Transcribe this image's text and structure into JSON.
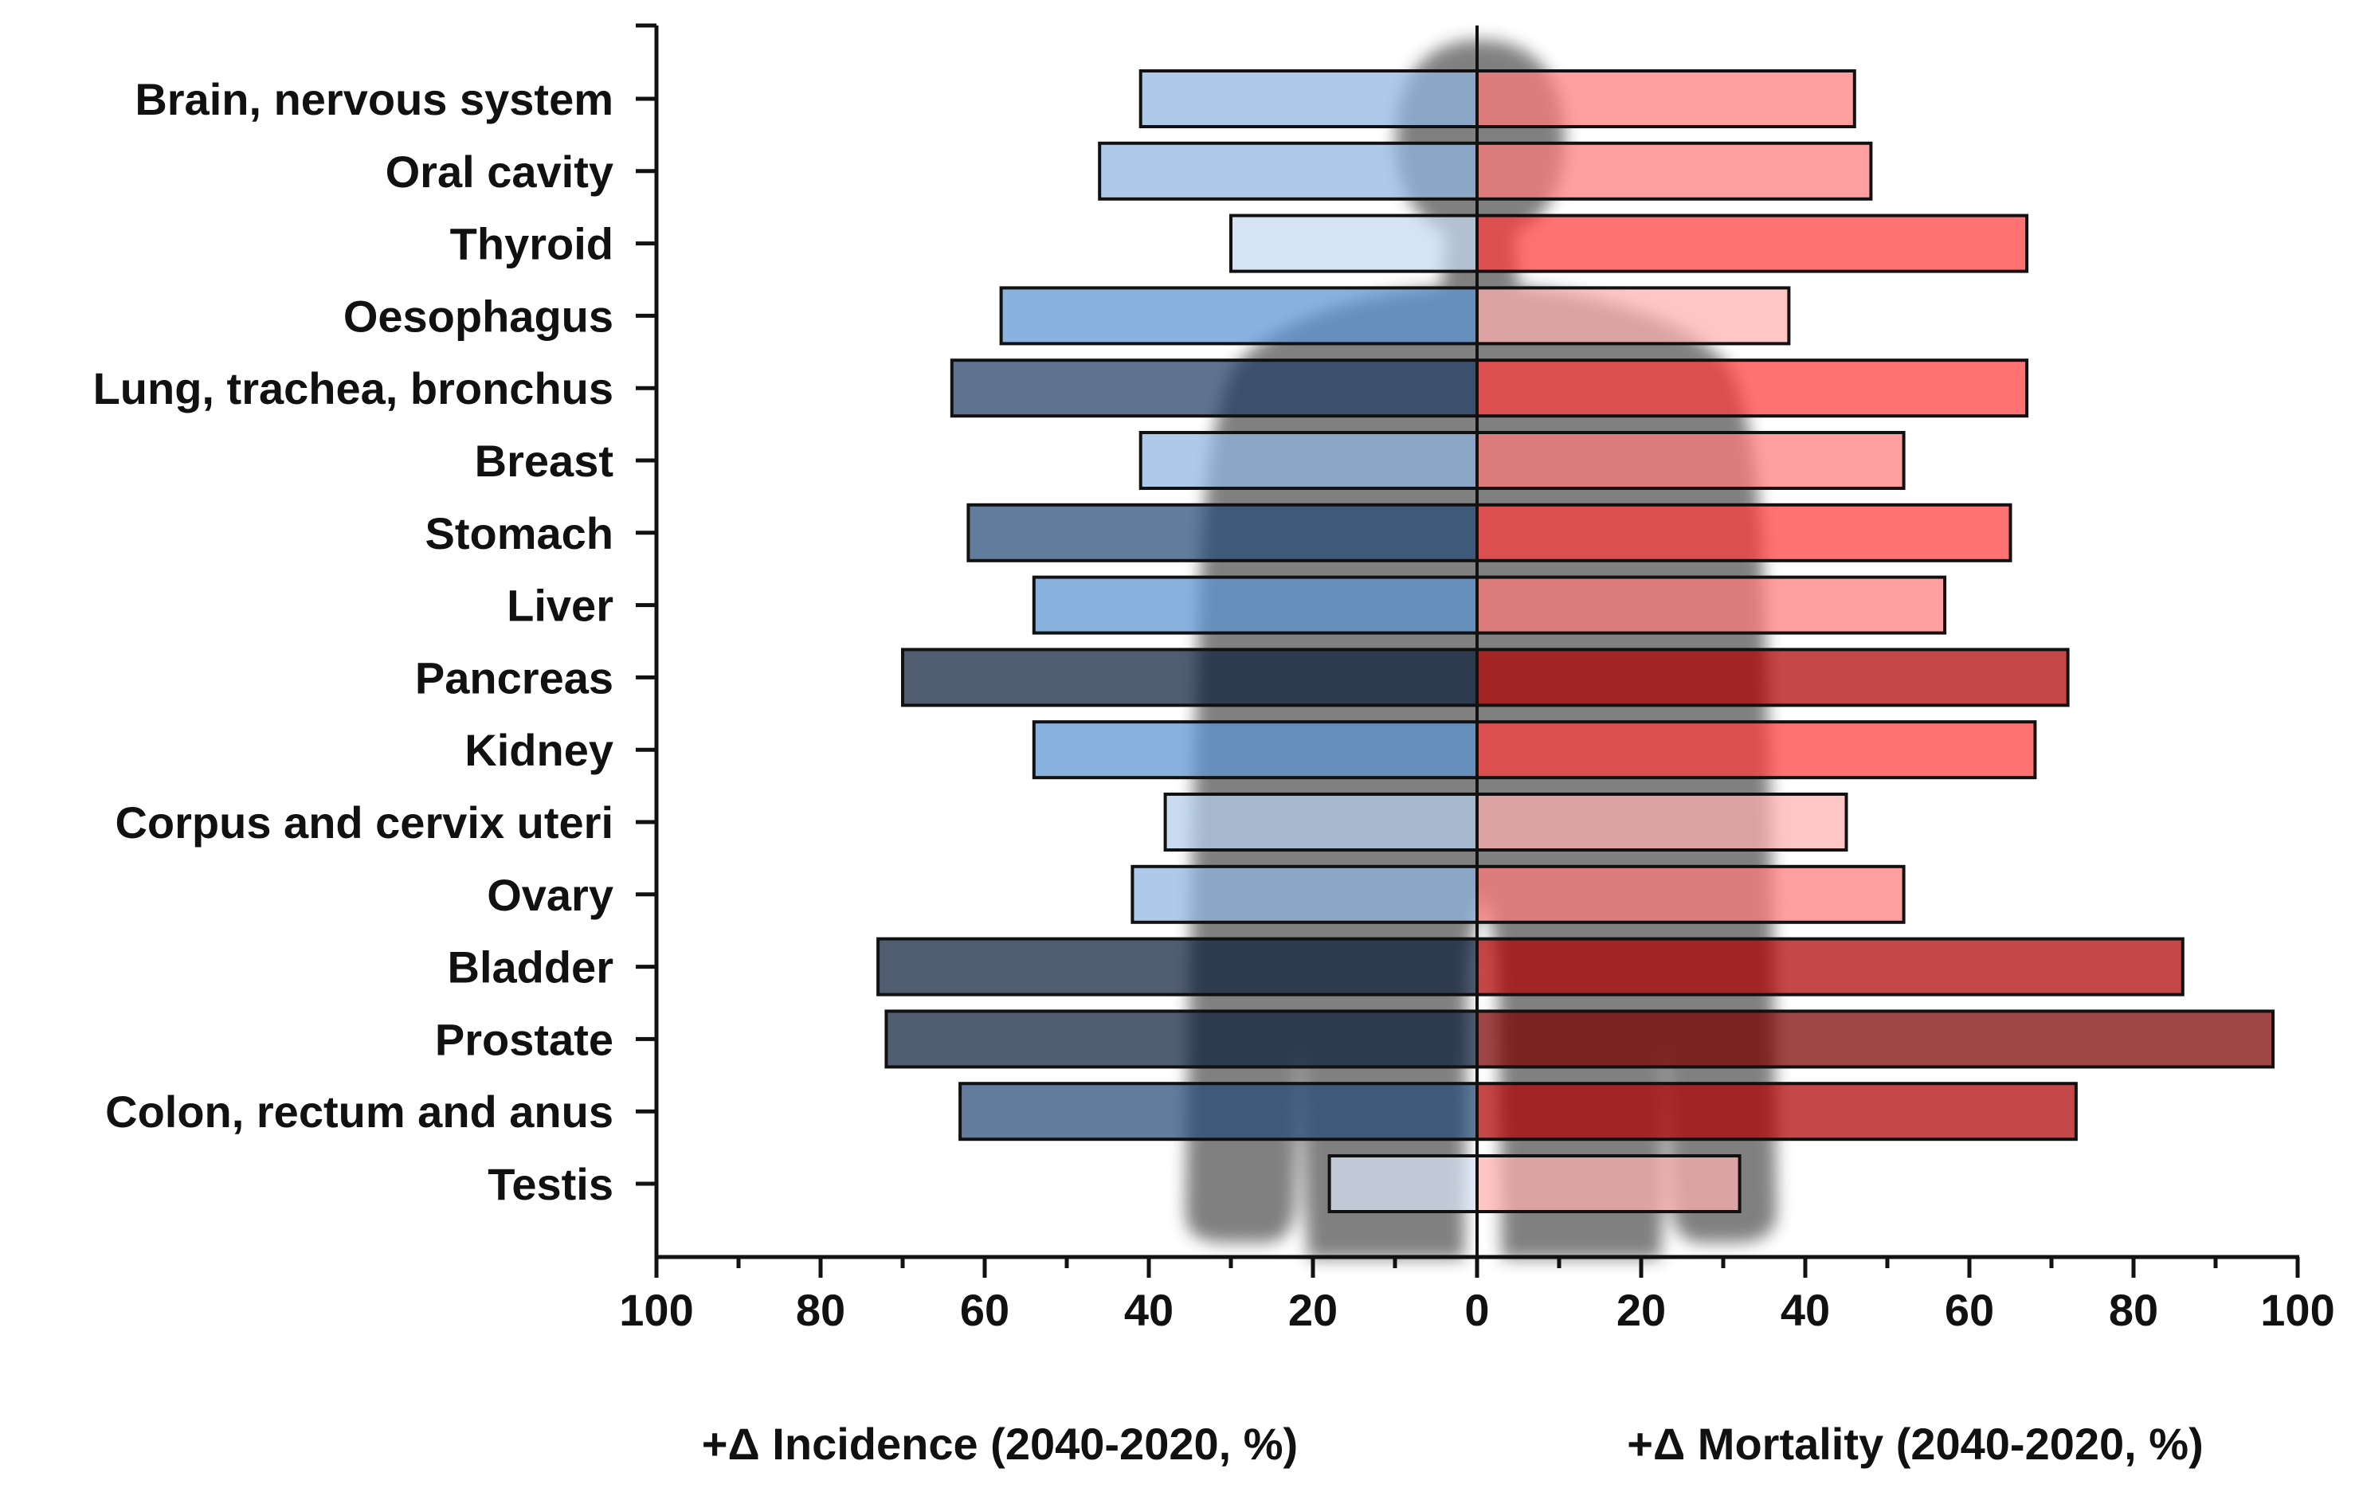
{
  "chart_data": {
    "type": "bar",
    "orientation": "horizontal",
    "layout": "diverging",
    "categories": [
      "Brain, nervous system",
      "Oral cavity",
      "Thyroid",
      "Oesophagus",
      "Lung, trachea, bronchus",
      "Breast",
      "Stomach",
      "Liver",
      "Pancreas",
      "Kidney",
      "Corpus and cervix uteri",
      "Ovary",
      "Bladder",
      "Prostate",
      "Colon, rectum and anus",
      "Testis"
    ],
    "series": [
      {
        "side": "left",
        "values": [
          41,
          46,
          30,
          58,
          64,
          41,
          62,
          54,
          70,
          54,
          38,
          42,
          73,
          72,
          63,
          18
        ],
        "colors": [
          "#8fb4e0",
          "#8fb4e0",
          "#c5d8ef",
          "#5b94d2",
          "#1f3d64",
          "#8fb4e0",
          "#264a78",
          "#5b94d2",
          "#0e1f3a",
          "#5b94d2",
          "#b3cdeb",
          "#8fb4e0",
          "#0e1f3a",
          "#0e1f3a",
          "#264a78",
          "#d8e5f5"
        ]
      },
      {
        "side": "right",
        "values": [
          46,
          48,
          67,
          38,
          67,
          52,
          65,
          57,
          72,
          68,
          45,
          52,
          86,
          97,
          73,
          32
        ],
        "colors": [
          "#ff7a7a",
          "#ff7a7a",
          "#ff3c3c",
          "#ffb0b0",
          "#ff3c3c",
          "#ff7a7a",
          "#ff3c3c",
          "#ff7a7a",
          "#b00000",
          "#ff3c3c",
          "#ffb0b0",
          "#ff7a7a",
          "#b00000",
          "#7a0000",
          "#b00000",
          "#ffb0b0"
        ]
      }
    ],
    "x_left": {
      "label": "+Δ Incidence (2040-2020, %)",
      "ticks": [
        100,
        80,
        60,
        40,
        20,
        0
      ],
      "range": [
        100,
        0
      ]
    },
    "x_right": {
      "label": "+Δ Mortality (2040-2020, %)",
      "ticks": [
        0,
        20,
        40,
        60,
        80,
        100
      ],
      "range": [
        0,
        100
      ]
    },
    "background": "human-silhouette",
    "legend": "none",
    "grid": false
  }
}
